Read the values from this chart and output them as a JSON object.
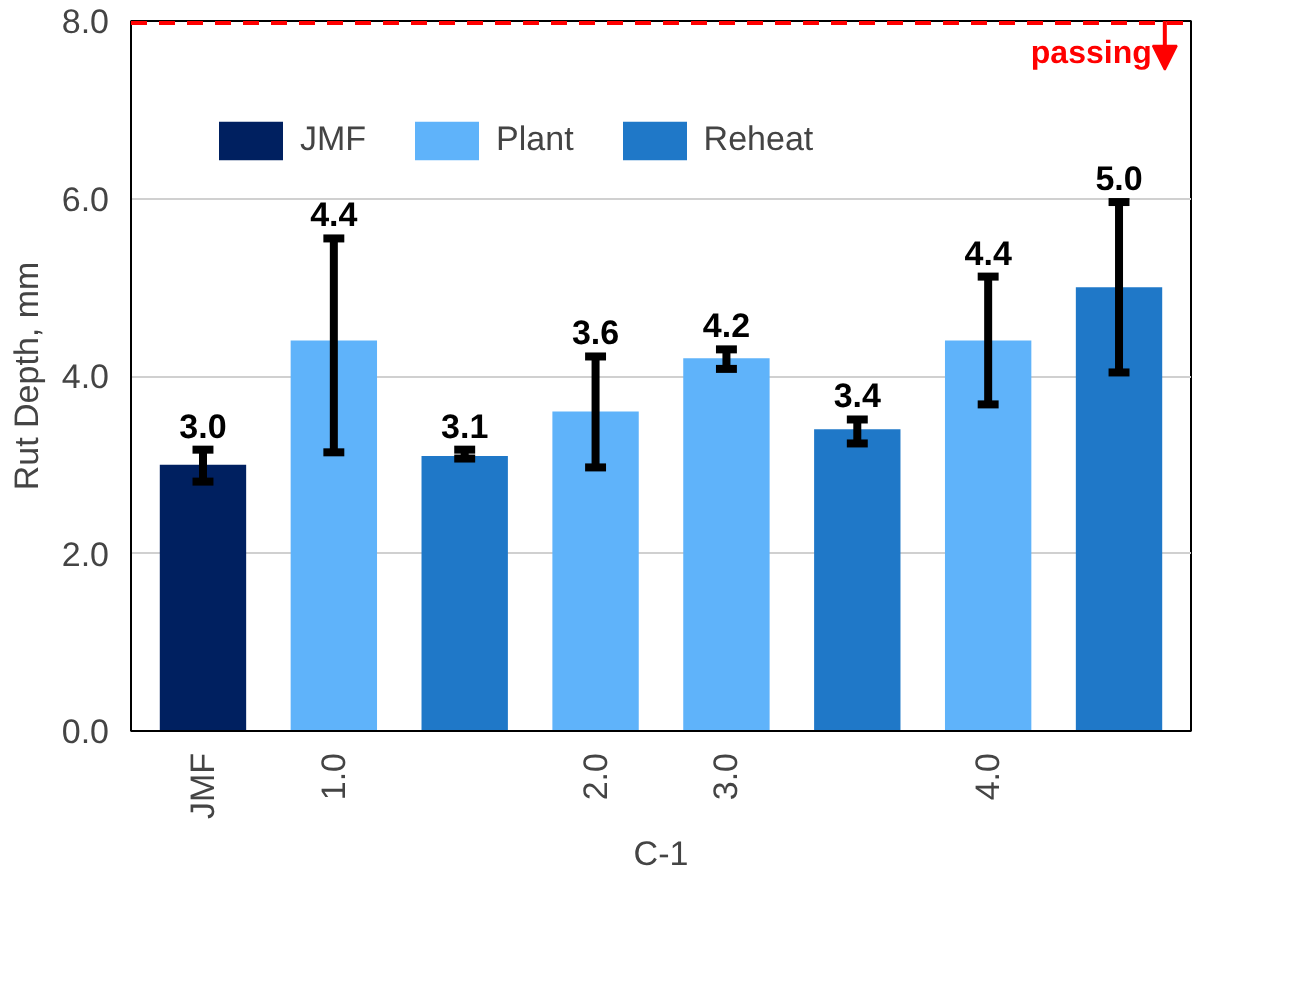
{
  "chart_data": {
    "type": "bar",
    "categories": [
      "JMF",
      "1.0",
      null,
      "2.0",
      "3.0",
      null,
      "4.0",
      null
    ],
    "xlabel": "C-1",
    "ylabel": "Rut Depth, mm",
    "series": [
      {
        "name": "JMF",
        "color": "#002060",
        "values": [
          3.0,
          null,
          null,
          null,
          null,
          null,
          null,
          null
        ],
        "value_labels": [
          "3.0",
          null,
          null,
          null,
          null,
          null,
          null,
          null
        ],
        "errors": [
          [
            2.81,
            3.17
          ],
          null,
          null,
          null,
          null,
          null,
          null,
          null
        ]
      },
      {
        "name": "Plant",
        "color": "#5fb3fa",
        "values": [
          null,
          4.4,
          null,
          3.6,
          4.2,
          null,
          4.4,
          null
        ],
        "value_labels": [
          null,
          "4.4",
          null,
          "3.6",
          "4.2",
          null,
          "4.4",
          null
        ],
        "errors": [
          null,
          [
            3.14,
            5.55
          ],
          null,
          [
            2.97,
            4.22
          ],
          [
            4.08,
            4.3
          ],
          null,
          [
            3.68,
            5.12
          ],
          null
        ]
      },
      {
        "name": "Reheat",
        "color": "#1f78c8",
        "values": [
          null,
          null,
          3.1,
          null,
          null,
          3.4,
          null,
          5.0
        ],
        "value_labels": [
          null,
          null,
          "3.1",
          null,
          null,
          "3.4",
          null,
          "5.0"
        ],
        "errors": [
          null,
          null,
          [
            3.07,
            3.17
          ],
          null,
          null,
          [
            3.24,
            3.51
          ],
          null,
          [
            4.04,
            5.96
          ]
        ]
      }
    ],
    "ylim": [
      0,
      8
    ],
    "yticks": [
      {
        "value": 0,
        "label": "0.0"
      },
      {
        "value": 2,
        "label": "2.0"
      },
      {
        "value": 4,
        "label": "4.0"
      },
      {
        "value": 6,
        "label": "6.0"
      },
      {
        "value": 8,
        "label": "8.0"
      }
    ],
    "grid": "y",
    "legend": "top",
    "ref_lines": [
      {
        "axis": "y",
        "value": 8,
        "label": "passing",
        "color": "#ff0000",
        "line_style": "dashed"
      }
    ]
  }
}
